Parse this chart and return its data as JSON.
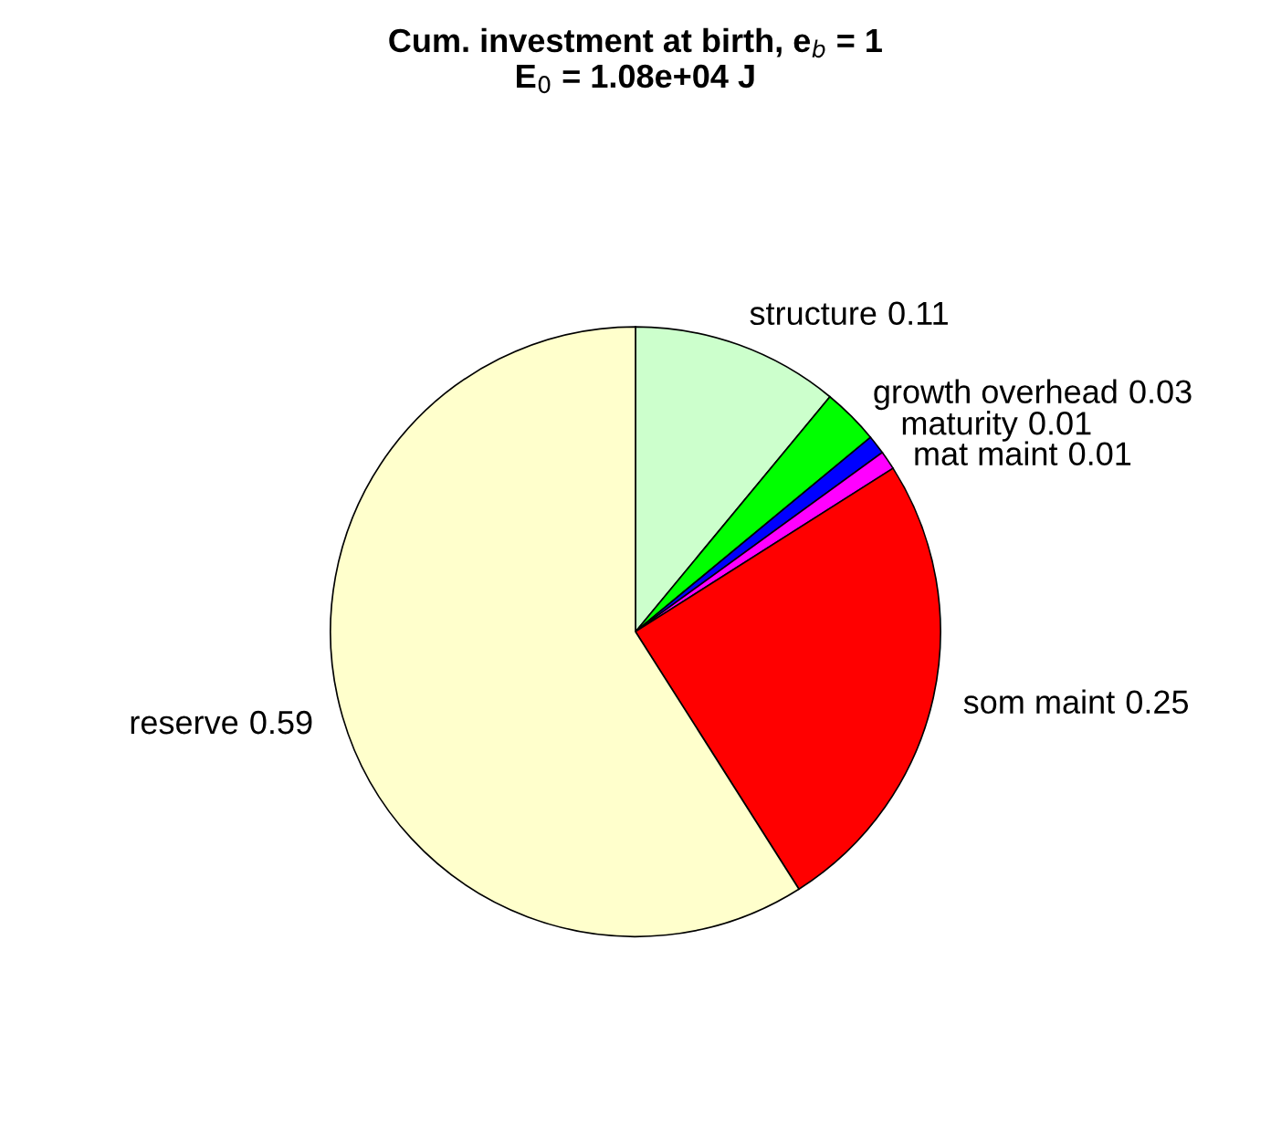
{
  "chart_data": {
    "type": "pie",
    "title": "Cum. investment at birth, e$_{b}$ = 1\nE$_{0}$ = 1.08e+04 J",
    "categories": [
      "structure",
      "growth overhead",
      "maturity",
      "mat maint",
      "som maint",
      "reserve"
    ],
    "values": [
      0.11,
      0.03,
      0.01,
      0.01,
      0.25,
      0.59
    ],
    "colors": [
      "#ccffcc",
      "#00ff00",
      "#0000ff",
      "#ff00ff",
      "#ff0000",
      "#ffffcc"
    ],
    "data_labels": true,
    "legend": false
  }
}
